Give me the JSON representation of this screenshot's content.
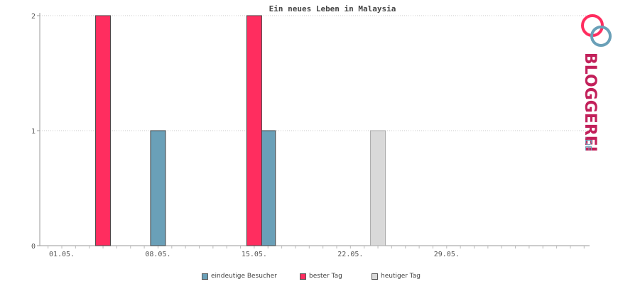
{
  "chart_data": {
    "type": "bar",
    "title": "Ein neues Leben in Malaysia",
    "x_start": "01.05.",
    "x_tick_labels": [
      "01.05.",
      "08.05.",
      "15.05.",
      "22.05.",
      "29.05."
    ],
    "x_tick_days": [
      1,
      8,
      15,
      22,
      29
    ],
    "y_ticks": [
      0,
      1,
      2
    ],
    "ylim": [
      0,
      2
    ],
    "grid": true,
    "series": [
      {
        "name": "eindeutige Besucher",
        "color": "#6aa0b8",
        "points": [
          {
            "day": 8,
            "value": 1
          },
          {
            "day": 16,
            "value": 1
          }
        ]
      },
      {
        "name": "bester Tag",
        "color": "#ff2d5f",
        "points": [
          {
            "day": 4,
            "value": 2
          },
          {
            "day": 15,
            "value": 2
          }
        ]
      },
      {
        "name": "heutiger Tag",
        "color": "#d9d9d9",
        "points": [
          {
            "day": 24,
            "value": 1
          }
        ]
      }
    ],
    "legend_position": "bottom"
  },
  "logo": {
    "text": "BLOGGEREI",
    "suffix": ".DE"
  }
}
